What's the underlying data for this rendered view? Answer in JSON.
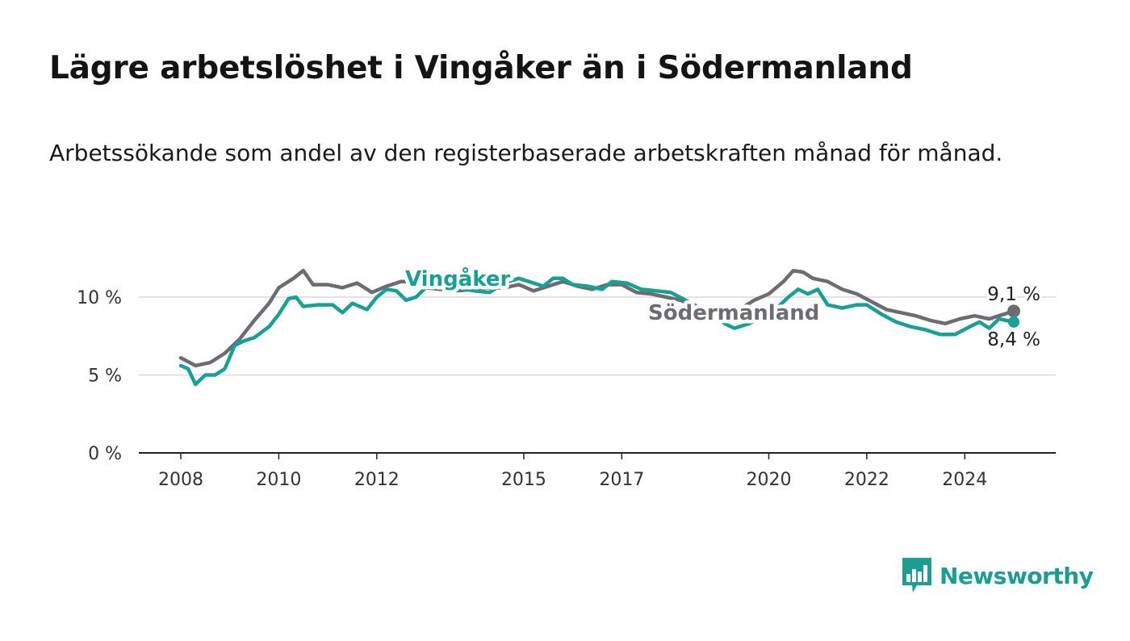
{
  "title": "Lägre arbetslöshet i Vingåker än i Södermanland",
  "subtitle": "Arbetssökande som andel av den registerbaserade arbetskraften månad för månad.",
  "brand": {
    "name": "Newsworthy",
    "icon": "newsworthy-logo-icon",
    "color": "#1a9e93"
  },
  "chart_data": {
    "type": "line",
    "title": "Lägre arbetslöshet i Vingåker än i Södermanland",
    "subtitle": "Arbetssökande som andel av den registerbaserade arbetskraften månad för månad.",
    "xlabel": "",
    "ylabel": "",
    "xlim": [
      2008.0,
      2026.5
    ],
    "ylim": [
      0,
      13
    ],
    "x_ticks": [
      2008,
      2010,
      2012,
      2015,
      2017,
      2020,
      2022,
      2024
    ],
    "x_tick_labels": [
      "2008",
      "2010",
      "2012",
      "2015",
      "2017",
      "2020",
      "2022",
      "2024"
    ],
    "y_ticks": [
      0,
      5,
      10
    ],
    "y_tick_labels": [
      "0 %",
      "5 %",
      "10 %"
    ],
    "grid": true,
    "legend": "inline labels",
    "series": [
      {
        "name": "Södermanland",
        "color": "#6d6c73",
        "end_label": "9,1 %",
        "points": [
          [
            2008.0,
            6.1
          ],
          [
            2008.3,
            5.6
          ],
          [
            2008.6,
            5.8
          ],
          [
            2008.9,
            6.4
          ],
          [
            2009.2,
            7.3
          ],
          [
            2009.5,
            8.5
          ],
          [
            2009.8,
            9.6
          ],
          [
            2010.0,
            10.6
          ],
          [
            2010.3,
            11.2
          ],
          [
            2010.5,
            11.7
          ],
          [
            2010.7,
            10.8
          ],
          [
            2011.0,
            10.8
          ],
          [
            2011.3,
            10.6
          ],
          [
            2011.6,
            10.9
          ],
          [
            2011.9,
            10.3
          ],
          [
            2012.2,
            10.7
          ],
          [
            2012.5,
            11.0
          ],
          [
            2012.8,
            11.0
          ],
          [
            2013.0,
            10.6
          ],
          [
            2013.3,
            10.5
          ],
          [
            2013.6,
            10.4
          ],
          [
            2014.0,
            10.5
          ],
          [
            2014.3,
            10.6
          ],
          [
            2014.6,
            10.6
          ],
          [
            2014.9,
            10.8
          ],
          [
            2015.2,
            10.4
          ],
          [
            2015.5,
            10.7
          ],
          [
            2015.8,
            11.0
          ],
          [
            2016.1,
            10.7
          ],
          [
            2016.4,
            10.5
          ],
          [
            2016.7,
            10.8
          ],
          [
            2017.0,
            10.8
          ],
          [
            2017.3,
            10.3
          ],
          [
            2017.6,
            10.2
          ],
          [
            2017.9,
            10.0
          ],
          [
            2018.2,
            9.8
          ],
          [
            2018.5,
            9.4
          ],
          [
            2018.8,
            9.0
          ],
          [
            2019.1,
            8.8
          ],
          [
            2019.4,
            9.2
          ],
          [
            2019.7,
            9.8
          ],
          [
            2020.0,
            10.2
          ],
          [
            2020.3,
            11.0
          ],
          [
            2020.5,
            11.7
          ],
          [
            2020.7,
            11.6
          ],
          [
            2020.9,
            11.2
          ],
          [
            2021.2,
            11.0
          ],
          [
            2021.5,
            10.5
          ],
          [
            2021.8,
            10.2
          ],
          [
            2022.1,
            9.7
          ],
          [
            2022.4,
            9.2
          ],
          [
            2022.7,
            9.0
          ],
          [
            2023.0,
            8.8
          ],
          [
            2023.3,
            8.5
          ],
          [
            2023.6,
            8.3
          ],
          [
            2023.9,
            8.6
          ],
          [
            2024.2,
            8.8
          ],
          [
            2024.5,
            8.6
          ],
          [
            2024.8,
            8.9
          ],
          [
            2025.0,
            9.1
          ]
        ]
      },
      {
        "name": "Vingåker",
        "color": "#16a096",
        "end_label": "8,4 %",
        "points": [
          [
            2008.0,
            5.6
          ],
          [
            2008.15,
            5.4
          ],
          [
            2008.3,
            4.4
          ],
          [
            2008.5,
            5.0
          ],
          [
            2008.7,
            5.0
          ],
          [
            2008.9,
            5.4
          ],
          [
            2009.1,
            6.9
          ],
          [
            2009.3,
            7.2
          ],
          [
            2009.5,
            7.4
          ],
          [
            2009.8,
            8.1
          ],
          [
            2010.0,
            8.9
          ],
          [
            2010.2,
            9.9
          ],
          [
            2010.35,
            10.0
          ],
          [
            2010.5,
            9.4
          ],
          [
            2010.8,
            9.5
          ],
          [
            2011.1,
            9.5
          ],
          [
            2011.3,
            9.0
          ],
          [
            2011.5,
            9.6
          ],
          [
            2011.8,
            9.2
          ],
          [
            2012.0,
            10.0
          ],
          [
            2012.2,
            10.5
          ],
          [
            2012.4,
            10.4
          ],
          [
            2012.6,
            9.8
          ],
          [
            2012.8,
            10.0
          ],
          [
            2013.0,
            10.6
          ],
          [
            2013.3,
            10.8
          ],
          [
            2013.6,
            10.6
          ],
          [
            2014.0,
            10.4
          ],
          [
            2014.3,
            10.3
          ],
          [
            2014.6,
            10.9
          ],
          [
            2014.9,
            11.2
          ],
          [
            2015.2,
            10.9
          ],
          [
            2015.4,
            10.7
          ],
          [
            2015.6,
            11.2
          ],
          [
            2015.8,
            11.2
          ],
          [
            2016.0,
            10.8
          ],
          [
            2016.3,
            10.7
          ],
          [
            2016.6,
            10.5
          ],
          [
            2016.8,
            11.0
          ],
          [
            2017.1,
            10.9
          ],
          [
            2017.4,
            10.5
          ],
          [
            2017.7,
            10.4
          ],
          [
            2018.0,
            10.3
          ],
          [
            2018.3,
            9.8
          ],
          [
            2018.6,
            9.3
          ],
          [
            2018.9,
            8.8
          ],
          [
            2019.1,
            8.3
          ],
          [
            2019.3,
            8.0
          ],
          [
            2019.6,
            8.3
          ],
          [
            2019.9,
            8.8
          ],
          [
            2020.2,
            9.4
          ],
          [
            2020.4,
            10.0
          ],
          [
            2020.6,
            10.5
          ],
          [
            2020.8,
            10.2
          ],
          [
            2021.0,
            10.5
          ],
          [
            2021.2,
            9.5
          ],
          [
            2021.5,
            9.3
          ],
          [
            2021.8,
            9.5
          ],
          [
            2022.0,
            9.5
          ],
          [
            2022.3,
            8.9
          ],
          [
            2022.6,
            8.4
          ],
          [
            2022.9,
            8.1
          ],
          [
            2023.2,
            7.9
          ],
          [
            2023.5,
            7.6
          ],
          [
            2023.8,
            7.6
          ],
          [
            2024.1,
            8.1
          ],
          [
            2024.3,
            8.4
          ],
          [
            2024.5,
            8.0
          ],
          [
            2024.7,
            8.6
          ],
          [
            2025.0,
            8.4
          ]
        ]
      }
    ]
  }
}
